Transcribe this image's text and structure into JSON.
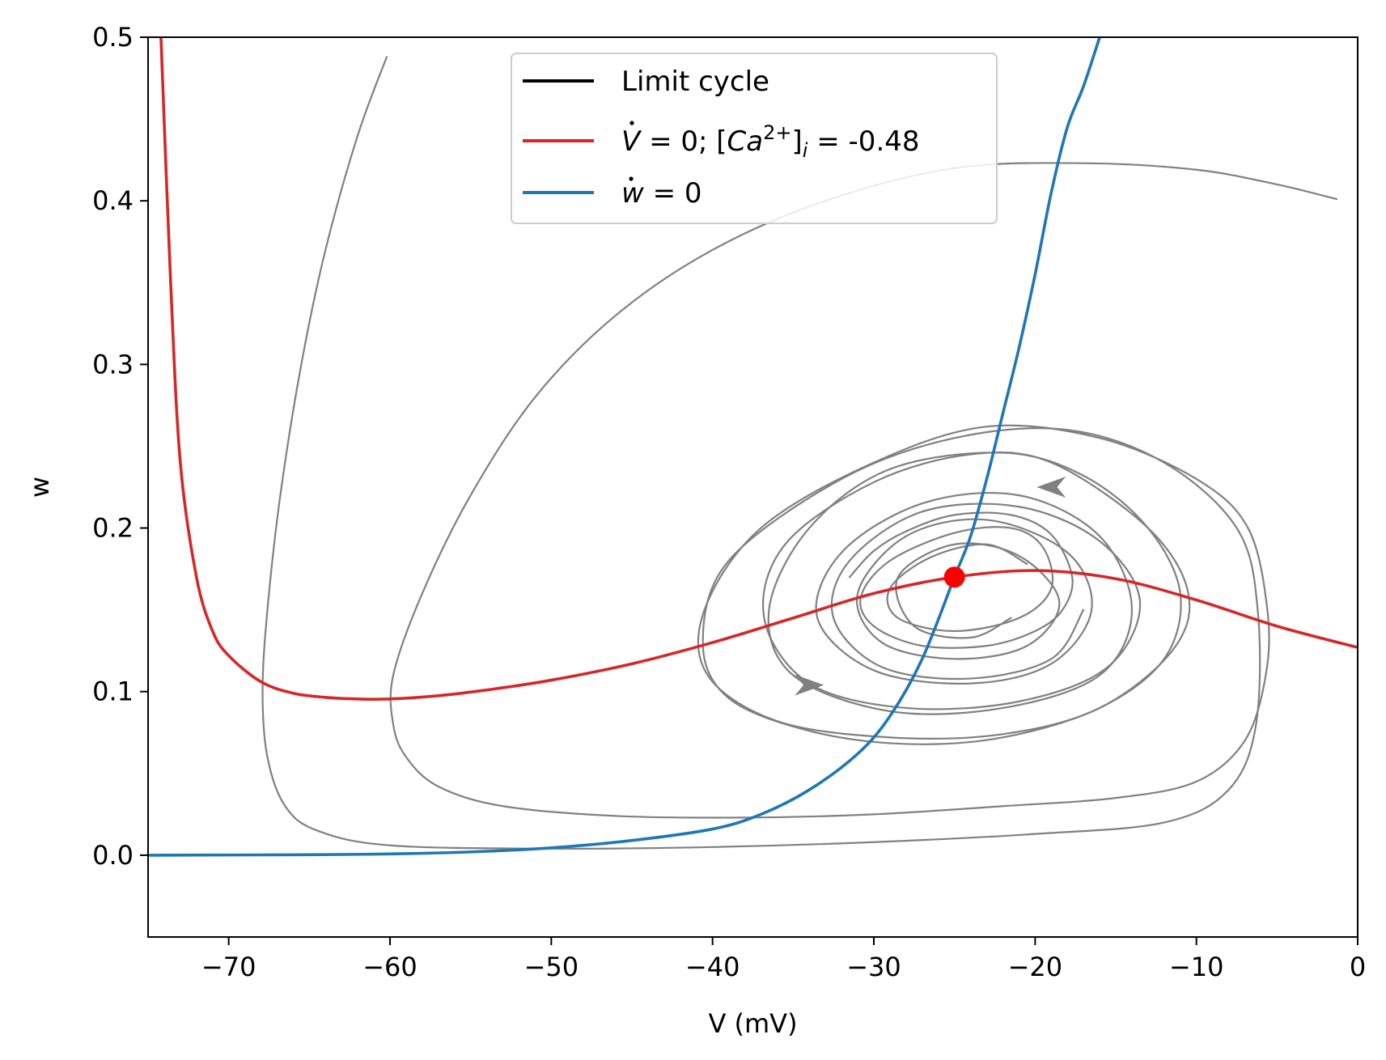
{
  "chart_data": {
    "type": "line",
    "title": "",
    "xlabel": "V (mV)",
    "ylabel": "w",
    "xlim": [
      -75,
      0
    ],
    "ylim": [
      -0.05,
      0.5
    ],
    "x_ticks": [
      -70,
      -60,
      -50,
      -40,
      -30,
      -20,
      -10,
      0
    ],
    "x_tick_labels": [
      "−70",
      "−60",
      "−50",
      "−40",
      "−30",
      "−20",
      "−10",
      "0"
    ],
    "y_ticks": [
      0.0,
      0.1,
      0.2,
      0.3,
      0.4,
      0.5
    ],
    "y_tick_labels": [
      "0.0",
      "0.1",
      "0.2",
      "0.3",
      "0.4",
      "0.5"
    ],
    "grid": false,
    "legend": {
      "position": "top-center",
      "entries": [
        {
          "label": "Limit cycle",
          "color": "#000000"
        },
        {
          "label_parts": [
            "V",
            " = 0; [",
            "Ca",
            "2+",
            "]",
            "i",
            " = -0.48"
          ],
          "color": "#d62728"
        },
        {
          "label_parts": [
            "w",
            " = 0"
          ],
          "color": "#1f77b4"
        }
      ]
    },
    "series": [
      {
        "color": "#d62728",
        "points": [
          [
            -74.2,
            0.5
          ],
          [
            -73.6,
            0.35
          ],
          [
            -73,
            0.24
          ],
          [
            -72,
            0.17
          ],
          [
            -71,
            0.137
          ],
          [
            -70,
            0.122
          ],
          [
            -68,
            0.106
          ],
          [
            -66,
            0.099
          ],
          [
            -64,
            0.0965
          ],
          [
            -62,
            0.0955
          ],
          [
            -60,
            0.0955
          ],
          [
            -57,
            0.0975
          ],
          [
            -54,
            0.101
          ],
          [
            -50,
            0.107
          ],
          [
            -45,
            0.117
          ],
          [
            -40,
            0.13
          ],
          [
            -35,
            0.145
          ],
          [
            -30,
            0.16
          ],
          [
            -25,
            0.17
          ],
          [
            -20,
            0.174
          ],
          [
            -15,
            0.169
          ],
          [
            -10,
            0.156
          ],
          [
            -5,
            0.14
          ],
          [
            0,
            0.127
          ]
        ]
      },
      {
        "color": "#1f77b4",
        "points": [
          [
            -75,
            0
          ],
          [
            -65,
            0.0003
          ],
          [
            -60,
            0.0008
          ],
          [
            -55,
            0.002
          ],
          [
            -50,
            0.0045
          ],
          [
            -45,
            0.009
          ],
          [
            -40,
            0.016
          ],
          [
            -37,
            0.025
          ],
          [
            -34,
            0.04
          ],
          [
            -31,
            0.062
          ],
          [
            -29,
            0.085
          ],
          [
            -27,
            0.12
          ],
          [
            -25,
            0.17
          ],
          [
            -24,
            0.195
          ],
          [
            -23,
            0.23
          ],
          [
            -22,
            0.27
          ],
          [
            -21,
            0.31
          ],
          [
            -20,
            0.355
          ],
          [
            -19,
            0.405
          ],
          [
            -18,
            0.445
          ],
          [
            -17,
            0.47
          ],
          [
            -16,
            0.5
          ]
        ]
      },
      {
        "color": "#808080",
        "points": [
          [
            -60.2,
            0.488
          ],
          [
            -62,
            0.44
          ],
          [
            -64,
            0.37
          ],
          [
            -65.5,
            0.3
          ],
          [
            -66.8,
            0.22
          ],
          [
            -67.6,
            0.15
          ],
          [
            -67.9,
            0.1
          ],
          [
            -67.6,
            0.06
          ],
          [
            -66.5,
            0.03
          ],
          [
            -64.5,
            0.015
          ],
          [
            -60,
            0.006
          ],
          [
            -50,
            0.004
          ],
          [
            -40,
            0.005
          ],
          [
            -30,
            0.008
          ],
          [
            -20,
            0.013
          ],
          [
            -12,
            0.02
          ],
          [
            -8,
            0.04
          ],
          [
            -6.3,
            0.08
          ],
          [
            -6.2,
            0.15
          ],
          [
            -7.5,
            0.2
          ],
          [
            -12,
            0.24
          ],
          [
            -18,
            0.26
          ],
          [
            -25,
            0.255
          ],
          [
            -32,
            0.23
          ],
          [
            -39,
            0.18
          ],
          [
            -40.6,
            0.13
          ],
          [
            -39,
            0.096
          ],
          [
            -34,
            0.076
          ],
          [
            -28,
            0.068
          ],
          [
            -22,
            0.072
          ],
          [
            -16,
            0.09
          ],
          [
            -12,
            0.12
          ],
          [
            -11,
            0.16
          ],
          [
            -13,
            0.2
          ],
          [
            -17,
            0.232
          ],
          [
            -22,
            0.246
          ],
          [
            -29,
            0.236
          ],
          [
            -34,
            0.2
          ],
          [
            -36.5,
            0.15
          ],
          [
            -35,
            0.11
          ],
          [
            -29,
            0.088
          ],
          [
            -22,
            0.09
          ],
          [
            -16,
            0.11
          ],
          [
            -14,
            0.15
          ],
          [
            -16,
            0.195
          ],
          [
            -21,
            0.22
          ],
          [
            -27,
            0.215
          ],
          [
            -32,
            0.185
          ],
          [
            -33.5,
            0.145
          ],
          [
            -30,
            0.113
          ],
          [
            -24,
            0.105
          ],
          [
            -19,
            0.117
          ],
          [
            -16.5,
            0.15
          ],
          [
            -18,
            0.185
          ],
          [
            -23,
            0.205
          ],
          [
            -28,
            0.195
          ],
          [
            -31,
            0.16
          ],
          [
            -29.5,
            0.13
          ],
          [
            -25,
            0.12
          ],
          [
            -20.5,
            0.128
          ],
          [
            -18.5,
            0.155
          ],
          [
            -21,
            0.183
          ],
          [
            -25,
            0.19
          ],
          [
            -28.5,
            0.17
          ],
          [
            -27.5,
            0.14
          ],
          [
            -24,
            0.133
          ],
          [
            -21.5,
            0.145
          ]
        ]
      },
      {
        "color": "#808080",
        "points": [
          [
            -1.3,
            0.401
          ],
          [
            -5,
            0.41
          ],
          [
            -10,
            0.419
          ],
          [
            -17,
            0.423
          ],
          [
            -25,
            0.42
          ],
          [
            -33,
            0.4
          ],
          [
            -40,
            0.37
          ],
          [
            -46,
            0.33
          ],
          [
            -51,
            0.28
          ],
          [
            -55,
            0.22
          ],
          [
            -58,
            0.16
          ],
          [
            -59.8,
            0.11
          ],
          [
            -59.8,
            0.08
          ],
          [
            -59,
            0.06
          ],
          [
            -57,
            0.042
          ],
          [
            -53,
            0.03
          ],
          [
            -46,
            0.024
          ],
          [
            -38,
            0.023
          ],
          [
            -30,
            0.025
          ],
          [
            -22,
            0.03
          ],
          [
            -15,
            0.035
          ],
          [
            -10,
            0.045
          ],
          [
            -7,
            0.07
          ],
          [
            -5.7,
            0.11
          ],
          [
            -5.6,
            0.15
          ],
          [
            -6.8,
            0.2
          ],
          [
            -10,
            0.23
          ],
          [
            -16,
            0.255
          ],
          [
            -23,
            0.262
          ],
          [
            -30,
            0.24
          ],
          [
            -37,
            0.2
          ],
          [
            -40.5,
            0.15
          ],
          [
            -40.3,
            0.11
          ],
          [
            -36,
            0.082
          ],
          [
            -29,
            0.072
          ],
          [
            -22,
            0.074
          ],
          [
            -16,
            0.09
          ],
          [
            -11.5,
            0.125
          ],
          [
            -10.5,
            0.16
          ],
          [
            -13,
            0.2
          ],
          [
            -19,
            0.24
          ],
          [
            -24,
            0.245
          ],
          [
            -30,
            0.228
          ],
          [
            -35.5,
            0.19
          ],
          [
            -36.8,
            0.145
          ],
          [
            -34,
            0.105
          ],
          [
            -28,
            0.09
          ],
          [
            -21,
            0.094
          ],
          [
            -15.5,
            0.115
          ],
          [
            -13.5,
            0.155
          ],
          [
            -16,
            0.192
          ],
          [
            -21,
            0.213
          ],
          [
            -27,
            0.21
          ],
          [
            -31.5,
            0.18
          ],
          [
            -32.5,
            0.145
          ],
          [
            -29.5,
            0.115
          ],
          [
            -24,
            0.108
          ],
          [
            -19,
            0.12
          ],
          [
            -17,
            0.15
          ]
        ]
      },
      {
        "color": "#808080",
        "points": [
          [
            -31.5,
            0.17
          ],
          [
            -30,
            0.186
          ],
          [
            -28,
            0.198
          ],
          [
            -25,
            0.208
          ],
          [
            -21.5,
            0.208
          ],
          [
            -19,
            0.196
          ],
          [
            -17.7,
            0.17
          ],
          [
            -18.3,
            0.15
          ],
          [
            -20,
            0.137
          ],
          [
            -23,
            0.128
          ],
          [
            -27,
            0.128
          ],
          [
            -30,
            0.14
          ],
          [
            -30.8,
            0.158
          ],
          [
            -29,
            0.18
          ],
          [
            -25,
            0.197
          ],
          [
            -21.5,
            0.2
          ],
          [
            -19.5,
            0.188
          ],
          [
            -19,
            0.163
          ],
          [
            -21,
            0.145
          ],
          [
            -25,
            0.137
          ],
          [
            -28.5,
            0.145
          ],
          [
            -29,
            0.163
          ],
          [
            -26.5,
            0.182
          ],
          [
            -23,
            0.19
          ],
          [
            -20.5,
            0.178
          ]
        ]
      }
    ],
    "arrows": [
      {
        "x": -19,
        "y": 0.225,
        "dx": -1.8,
        "dy": 0.0,
        "color": "#808080"
      },
      {
        "x": -34,
        "y": 0.104,
        "dx": 1.8,
        "dy": 0.0,
        "color": "#808080"
      }
    ],
    "fixed_point": {
      "x": -25,
      "y": 0.17,
      "color": "#ff0000"
    }
  }
}
